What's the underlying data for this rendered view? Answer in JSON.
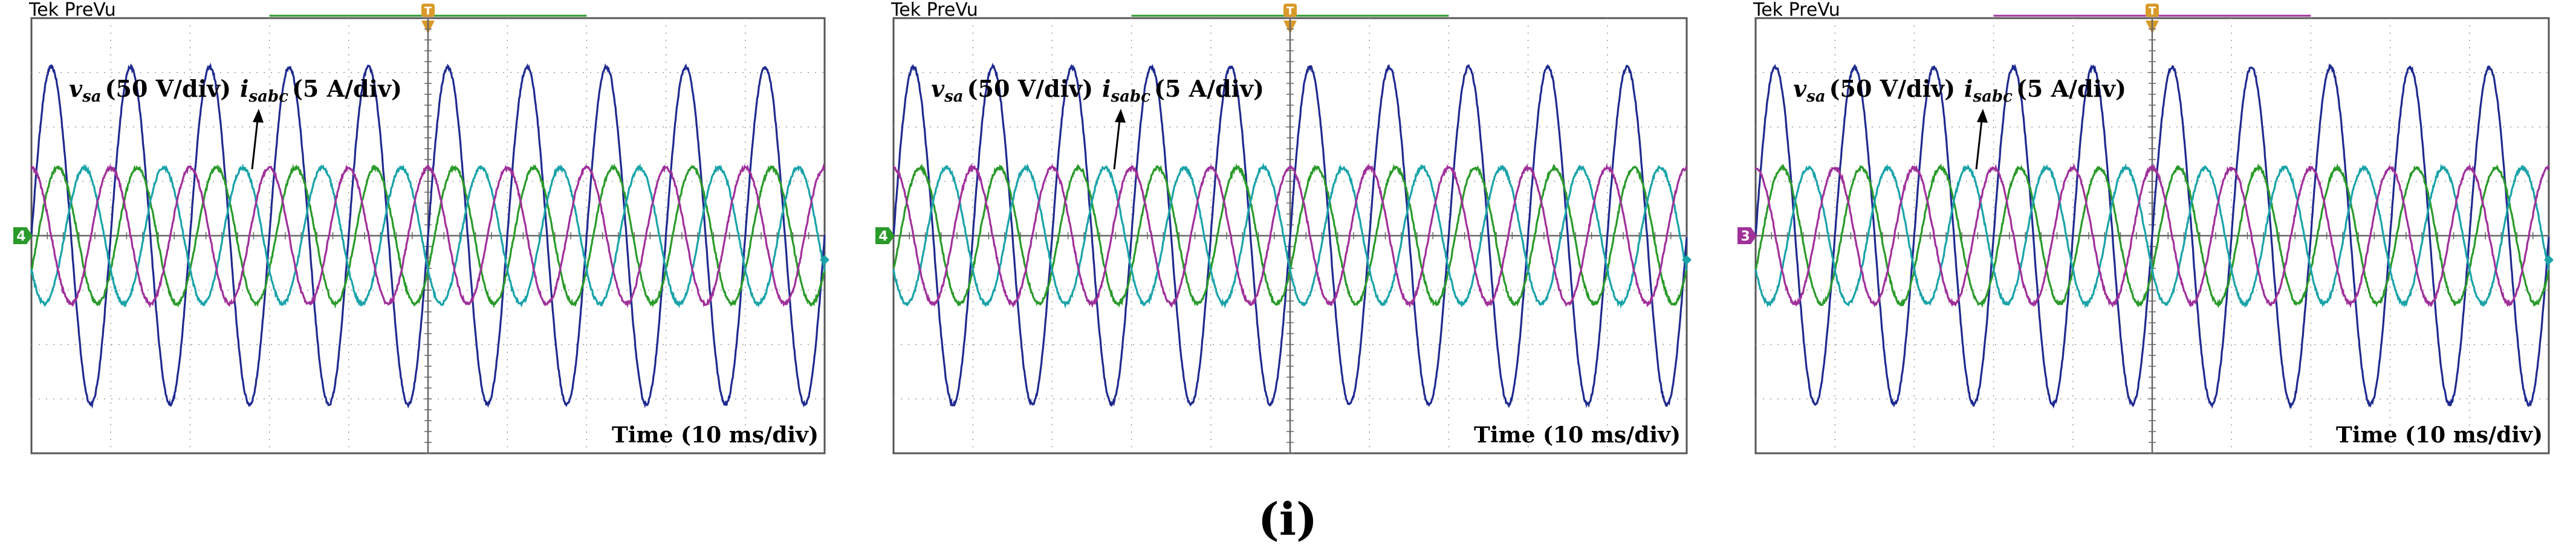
{
  "figure": {
    "caption": "(i)"
  },
  "colors": {
    "vsa": "#1f2a8f",
    "ia": "#2a9a2a",
    "ib": "#1aa3a8",
    "ic": "#a0309a",
    "grid": "#9a9a9a",
    "frame": "#555555",
    "trigger": "#d89a2a"
  },
  "chart_data": [
    {
      "type": "line",
      "instrument": "Tek PreVu",
      "channel_marker": "4",
      "channel_marker_color": "#2a9a2a",
      "trigger_line_color": "#2a9a2a",
      "voltage_label": {
        "symbol": "v",
        "subscript": "sa",
        "scale": "(50 V/div)"
      },
      "current_label": {
        "symbol": "i",
        "subscript": "sabc",
        "scale": "(5 A/div)"
      },
      "xlabel": "Time (10 ms/div)",
      "x_divisions": 10,
      "y_divisions": 8,
      "series": [
        {
          "name": "vsa",
          "color": "#1f2a8f",
          "amplitude_div": 3.1,
          "offset_div": 0,
          "phase_deg": 0
        },
        {
          "name": "isa",
          "color": "#2a9a2a",
          "amplitude_div": 1.25,
          "offset_div": 0,
          "phase_deg": -30
        },
        {
          "name": "isb",
          "color": "#1aa3a8",
          "amplitude_div": 1.25,
          "offset_div": 0,
          "phase_deg": 210
        },
        {
          "name": "isc",
          "color": "#a0309a",
          "amplitude_div": 1.25,
          "offset_div": 0,
          "phase_deg": 90
        }
      ],
      "cycles": 10
    },
    {
      "type": "line",
      "instrument": "Tek PreVu",
      "channel_marker": "4",
      "channel_marker_color": "#2a9a2a",
      "trigger_line_color": "#2a9a2a",
      "voltage_label": {
        "symbol": "v",
        "subscript": "sa",
        "scale": "(50 V/div)"
      },
      "current_label": {
        "symbol": "i",
        "subscript": "sabc",
        "scale": "(5 A/div)"
      },
      "xlabel": "Time (10 ms/div)",
      "x_divisions": 10,
      "y_divisions": 8,
      "series": [
        {
          "name": "vsa",
          "color": "#1f2a8f",
          "amplitude_div": 3.1,
          "offset_div": 0,
          "phase_deg": 0
        },
        {
          "name": "isa",
          "color": "#2a9a2a",
          "amplitude_div": 1.25,
          "offset_div": 0,
          "phase_deg": -30
        },
        {
          "name": "isb",
          "color": "#1aa3a8",
          "amplitude_div": 1.25,
          "offset_div": 0,
          "phase_deg": 210
        },
        {
          "name": "isc",
          "color": "#a0309a",
          "amplitude_div": 1.25,
          "offset_div": 0,
          "phase_deg": 90
        }
      ],
      "cycles": 10
    },
    {
      "type": "line",
      "instrument": "Tek PreVu",
      "channel_marker": "3",
      "channel_marker_color": "#a0309a",
      "trigger_line_color": "#a0309a",
      "voltage_label": {
        "symbol": "v",
        "subscript": "sa",
        "scale": "(50 V/div)"
      },
      "current_label": {
        "symbol": "i",
        "subscript": "sabc",
        "scale": "(5 A/div)"
      },
      "xlabel": "Time (10 ms/div)",
      "x_divisions": 10,
      "y_divisions": 8,
      "series": [
        {
          "name": "vsa",
          "color": "#1f2a8f",
          "amplitude_div": 3.1,
          "offset_div": 0,
          "phase_deg": 0
        },
        {
          "name": "isa",
          "color": "#2a9a2a",
          "amplitude_div": 1.25,
          "offset_div": 0,
          "phase_deg": -30
        },
        {
          "name": "isb",
          "color": "#1aa3a8",
          "amplitude_div": 1.25,
          "offset_div": 0,
          "phase_deg": 210
        },
        {
          "name": "isc",
          "color": "#a0309a",
          "amplitude_div": 1.25,
          "offset_div": 0,
          "phase_deg": 90
        }
      ],
      "cycles": 10
    }
  ]
}
